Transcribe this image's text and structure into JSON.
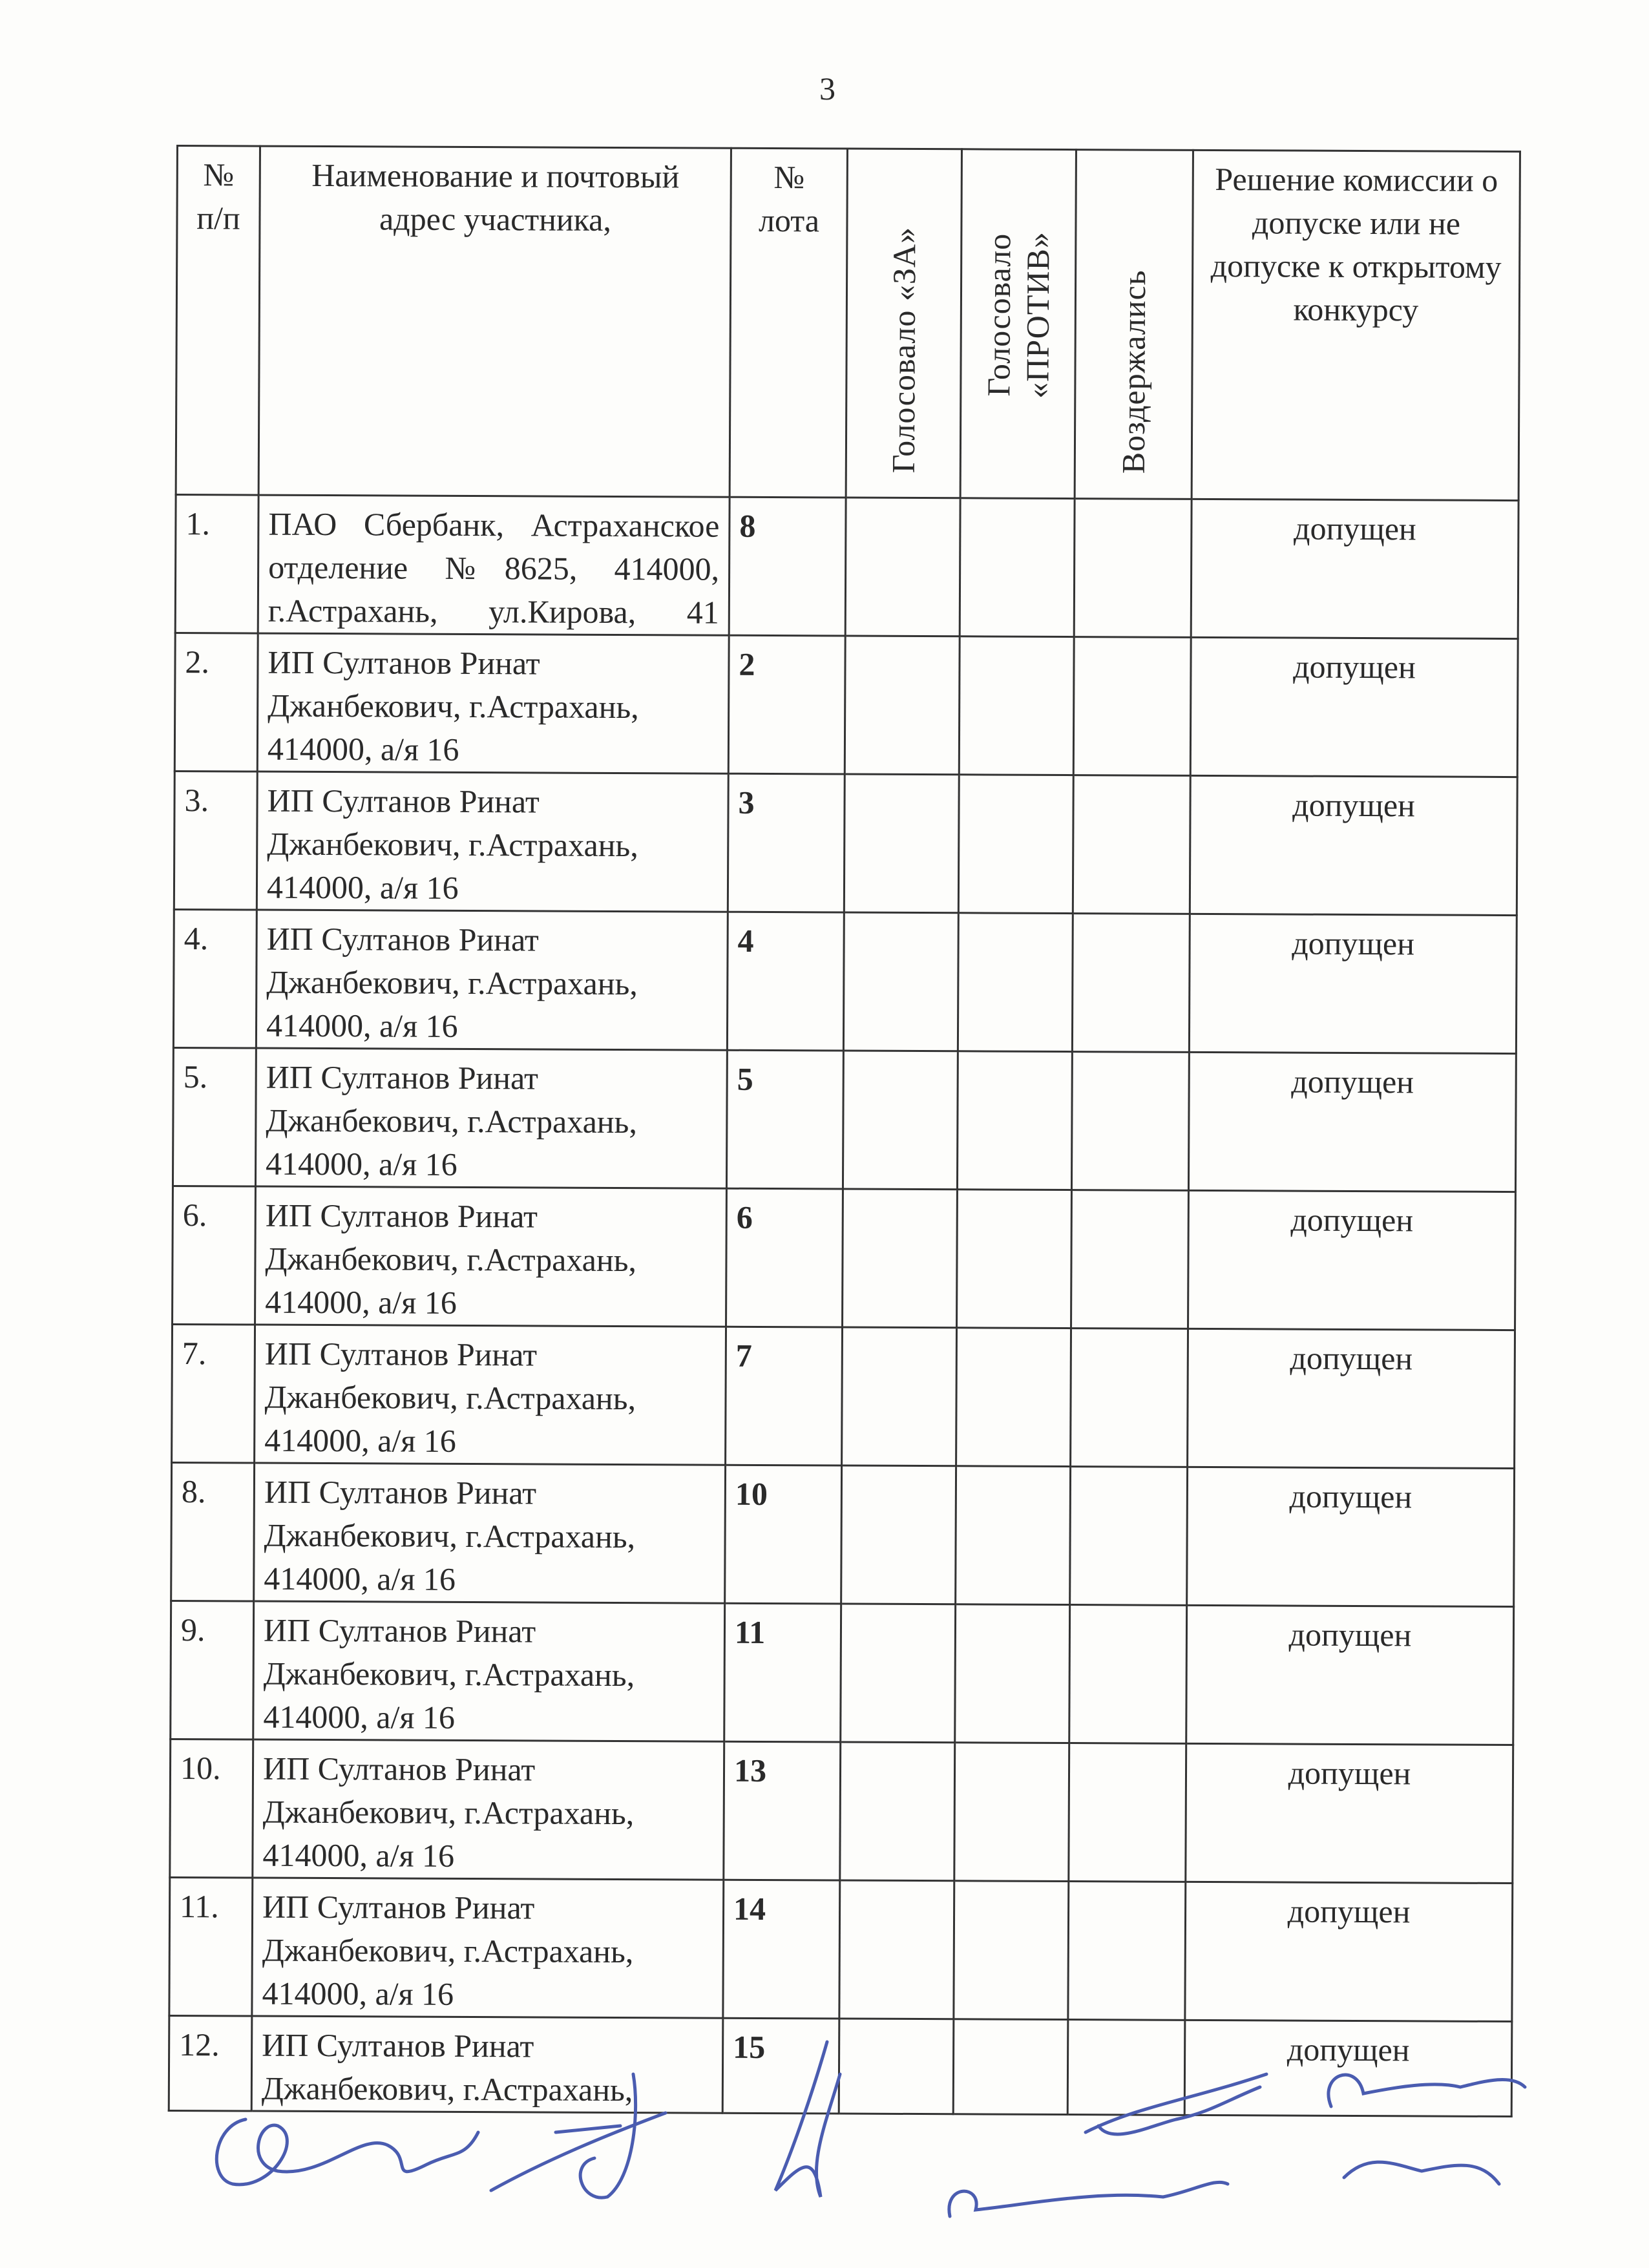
{
  "page_number": "3",
  "table": {
    "headers": {
      "num": "№ п/п",
      "name": "Наименование и почтовый адрес участника,",
      "lot": "№ лота",
      "for": "Голосовало «ЗА»",
      "against": "Голосовало «ПРОТИВ»",
      "abstained": "Воздержались",
      "decision": "Решение комиссии о допуске или не допуске к открытому конкурсу"
    },
    "rows": [
      {
        "num": "1.",
        "name": "ПАО Сбербанк, Астраханское отделение №8625, 414000, г.Астрахань, ул.Кирова, 41",
        "lot": "8",
        "decision": "допущен"
      },
      {
        "num": "2.",
        "name": "ИП Султанов Ринат Джанбекович, г.Астрахань, 414000, а/я 16",
        "lot": "2",
        "decision": "допущен"
      },
      {
        "num": "3.",
        "name": "ИП Султанов Ринат Джанбекович, г.Астрахань, 414000, а/я 16",
        "lot": "3",
        "decision": "допущен"
      },
      {
        "num": "4.",
        "name": "ИП Султанов Ринат Джанбекович, г.Астрахань, 414000, а/я 16",
        "lot": "4",
        "decision": "допущен"
      },
      {
        "num": "5.",
        "name": "ИП Султанов Ринат Джанбекович, г.Астрахань, 414000, а/я 16",
        "lot": "5",
        "decision": "допущен"
      },
      {
        "num": "6.",
        "name": "ИП Султанов Ринат Джанбекович, г.Астрахань, 414000, а/я 16",
        "lot": "6",
        "decision": "допущен"
      },
      {
        "num": "7.",
        "name": "ИП Султанов Ринат Джанбекович, г.Астрахань, 414000, а/я 16",
        "lot": "7",
        "decision": "допущен"
      },
      {
        "num": "8.",
        "name": "ИП Султанов Ринат Джанбекович, г.Астрахань, 414000, а/я 16",
        "lot": "10",
        "decision": "допущен"
      },
      {
        "num": "9.",
        "name": "ИП Султанов Ринат Джанбекович, г.Астрахань, 414000, а/я 16",
        "lot": "11",
        "decision": "допущен"
      },
      {
        "num": "10.",
        "name": "ИП Султанов Ринат Джанбекович, г.Астрахань, 414000, а/я 16",
        "lot": "13",
        "decision": "допущен"
      },
      {
        "num": "11.",
        "name": "ИП Султанов Ринат Джанбекович, г.Астрахань, 414000, а/я 16",
        "lot": "14",
        "decision": "допущен"
      },
      {
        "num": "12.",
        "name": "ИП Султанов Ринат Джанбекович, г.Астрахань,",
        "lot": "15",
        "decision": "допущен"
      }
    ]
  },
  "signature_ink_color": "#4a5cb0"
}
